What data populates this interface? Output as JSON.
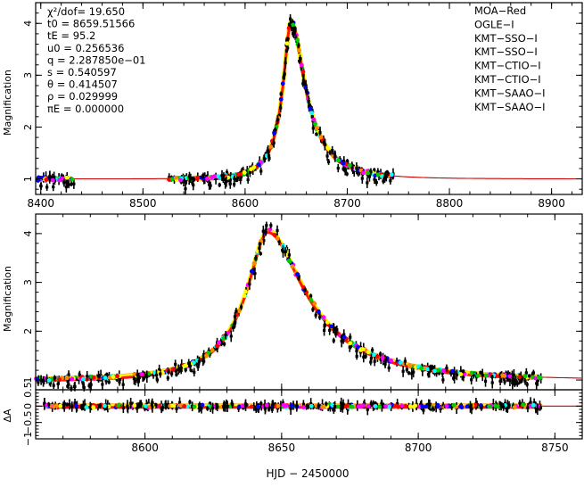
{
  "chart_data": [
    {
      "type": "scatter",
      "panel": "top",
      "ylabel": "Magnification",
      "xlim": [
        8395,
        8930
      ],
      "ylim": [
        0.7,
        4.4
      ],
      "xticks": [
        8400,
        8500,
        8600,
        8700,
        8800,
        8900
      ],
      "yticks": [
        1,
        2,
        3,
        4
      ],
      "annotation": {
        "chi2": "χ²/dof= 19.650",
        "t0": "t0 = 8659.51566",
        "tE": "tE = 95.2",
        "u0": "u0 = 0.256536",
        "q": "q = 2.287850e−01",
        "s": "s = 0.540597",
        "theta": "θ = 0.414507",
        "rho": "ρ = 0.029999",
        "piE": "πE = 0.000000"
      },
      "legend": [
        {
          "label": "MOA−Red",
          "color": "#000000"
        },
        {
          "label": "OGLE−I",
          "color": "#ff0000"
        },
        {
          "label": "KMT−SSO−I",
          "color": "#00cc00"
        },
        {
          "label": "KMT−SSO−I",
          "color": "#0000ff"
        },
        {
          "label": "KMT−CTIO−I",
          "color": "#00ffff"
        },
        {
          "label": "KMT−CTIO−I",
          "color": "#ff00ff"
        },
        {
          "label": "KMT−SAAO−I",
          "color": "#ffff00"
        },
        {
          "label": "KMT−SAAO−I",
          "color": "#ff8800"
        }
      ],
      "model": {
        "color": "#cc0000",
        "peak_t": 8645,
        "peak_mag": 4.05
      }
    },
    {
      "type": "scatter",
      "panel": "middle",
      "ylabel": "Magnification",
      "xlim": [
        8560,
        8760
      ],
      "ylim": [
        0.8,
        4.4
      ],
      "xticks": [
        8600,
        8650,
        8700,
        8750
      ],
      "yticks": [
        1,
        2,
        3,
        4
      ]
    },
    {
      "type": "scatter",
      "panel": "residual",
      "ylabel": "ΔA",
      "xlabel": "HJD − 2450000",
      "xlim": [
        8560,
        8760
      ],
      "ylim": [
        -1.0,
        0.5
      ],
      "xticks": [
        8600,
        8650,
        8700,
        8750
      ],
      "xticklabels": [
        "8600",
        "8650",
        "8700",
        "8750"
      ],
      "yticks": [
        -1.0,
        -0.5,
        0,
        0.5
      ],
      "yticklabels": [
        "−1",
        "−0.5",
        "0",
        "0.5"
      ]
    }
  ]
}
